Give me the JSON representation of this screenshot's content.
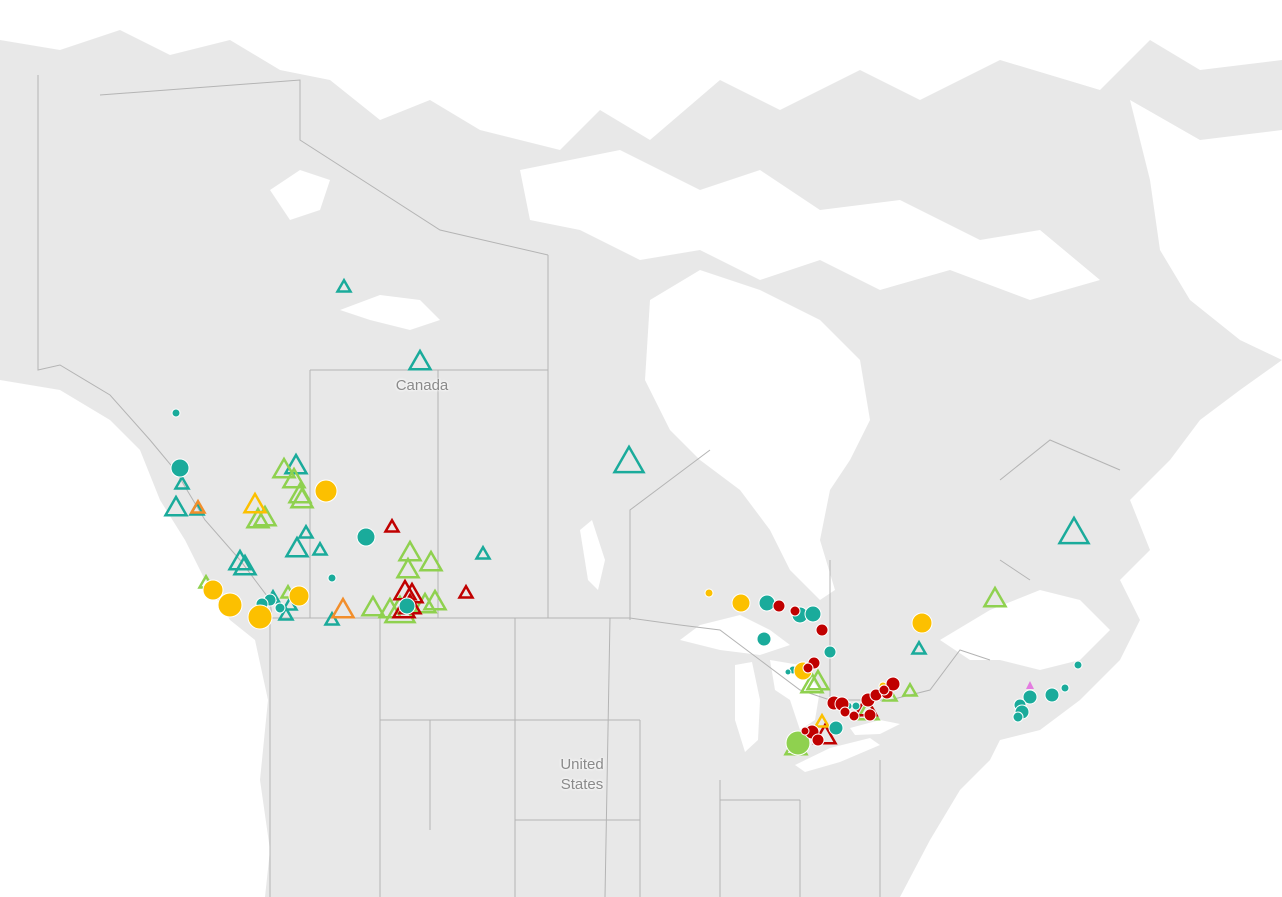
{
  "map": {
    "labels": {
      "canada": "Canada",
      "united_states_line1": "United",
      "united_states_line2": "States"
    },
    "colors": {
      "land": "#e8e8e8",
      "water": "#ffffff",
      "border": "#b4b4b4",
      "teal": "#1aab9b",
      "yellow": "#fcc000",
      "green": "#8fd14f",
      "red": "#c00000",
      "orange": "#f28e2b",
      "pink": "#e37ce0"
    },
    "marker_shapes": [
      "circle",
      "triangle"
    ]
  }
}
